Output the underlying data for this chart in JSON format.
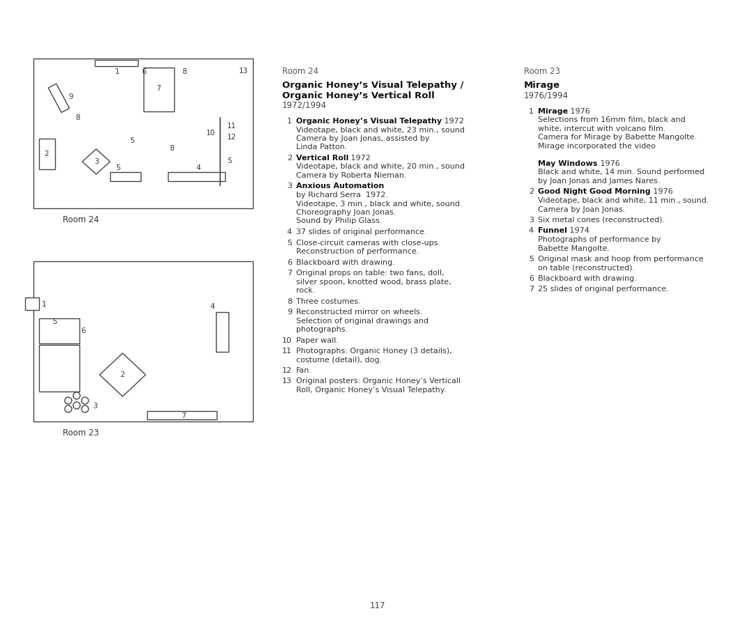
{
  "bg_color": "#ffffff",
  "line_color": "#444444",
  "text_color": "#333333",
  "page_number": "117",
  "room24_label": "Room 24",
  "room23_label": "Room 23",
  "room24_title_line1": "Organic Honey’s Visual Telepathy /",
  "room24_title_line2": "Organic Honey’s Vertical Roll",
  "room24_year": "1972/1994",
  "room23_title": "Mirage",
  "room23_year": "1976/1994",
  "room24_items": [
    {
      "num": "1",
      "bold": "Organic Honey’s Visual Telepathy",
      "rest": " 1972\nVideotape, black and white, 23 min., sound\nCamera by Joan Jonas, assisted by\nLinda Patton."
    },
    {
      "num": "2",
      "bold": "Vertical Roll",
      "rest": " 1972\nVideotape, black and white, 20 min., sound\nCamera by Roberta Nieman."
    },
    {
      "num": "3",
      "bold": "Anxious Automation",
      "rest": "\nby Richard Serra  1972.\nVideotape, 3 min., black and white, sound.\nChoreography Joan Jonas.\nSound by Philip Glass."
    },
    {
      "num": "4",
      "bold": "",
      "rest": "37 slides of original performance."
    },
    {
      "num": "5",
      "bold": "",
      "rest": "Close-circuit cameras with close-ups.\nReconstruction of performance."
    },
    {
      "num": "6",
      "bold": "",
      "rest": "Blackboard with drawing."
    },
    {
      "num": "7",
      "bold": "",
      "rest": "Original props on table: two fans, doll,\nsilver spoon, knotted wood, brass plate,\nrock."
    },
    {
      "num": "8",
      "bold": "",
      "rest": "Three costumes."
    },
    {
      "num": "9",
      "bold": "",
      "rest": "Reconstructed mirror on wheels.\nSelection of original drawings and\nphotographs."
    },
    {
      "num": "10",
      "bold": "",
      "rest": "Paper wall."
    },
    {
      "num": "11",
      "bold": "",
      "rest": "Photographs: Organic Honey (3 details),\ncostume (detail), dog."
    },
    {
      "num": "12",
      "bold": "",
      "rest": "Fan."
    },
    {
      "num": "13",
      "bold": "",
      "rest": "Original posters: Organic Honey’s Verticall\nRoll, Organic Honey’s Visual Telepathy."
    }
  ],
  "room23_items": [
    {
      "num": "1",
      "bold": "Mirage",
      "rest": " 1976\nSelections from 16mm film, black and\nwhite, intercut with volcano film.\nCamera for Mirage by Babette Mangolte.\nMirage incorporated the video\n",
      "extra_bold": "May Windows",
      "extra_rest": " 1976\nBlack and white, 14 min. Sound performed\nby Joan Jonas and James Nares."
    },
    {
      "num": "2",
      "bold": "Good Night Good Morning",
      "rest": " 1976\nVideotape, black and white, 11 min., sound.\nCamera by Joan Jonas."
    },
    {
      "num": "3",
      "bold": "",
      "rest": "Six metal cones (reconstructed)."
    },
    {
      "num": "4",
      "bold": "Funnel",
      "rest": " 1974\nPhotographs of performance by\nBabette Mangolte."
    },
    {
      "num": "5",
      "bold": "",
      "rest": "Original mask and hoop from performance\non table (reconstructed)."
    },
    {
      "num": "6",
      "bold": "",
      "rest": "Blackboard with drawing."
    },
    {
      "num": "7",
      "bold": "",
      "rest": "25 slides of original performance."
    }
  ]
}
